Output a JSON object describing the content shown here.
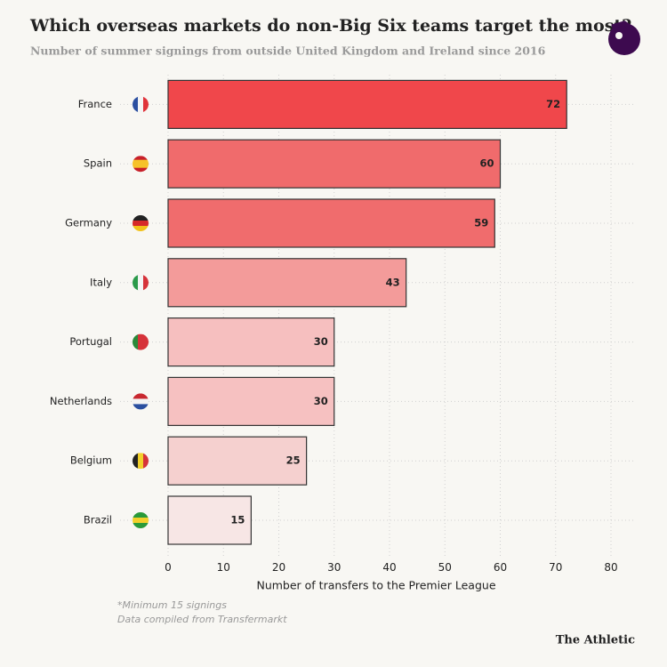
{
  "chart_data": {
    "type": "bar",
    "orientation": "horizontal",
    "title": "Which overseas markets do non-Big Six teams target the most?",
    "subtitle": "Number of summer signings from outside United Kingdom and Ireland since 2016",
    "categories": [
      "France",
      "Spain",
      "Germany",
      "Italy",
      "Portugal",
      "Netherlands",
      "Belgium",
      "Brazil"
    ],
    "values": [
      72,
      60,
      59,
      43,
      30,
      30,
      25,
      15
    ],
    "colors": [
      "#f0474b",
      "#f06b6c",
      "#f06c6d",
      "#f39b9a",
      "#f6bfbf",
      "#f6c1c1",
      "#f5d0cf",
      "#f7e6e5"
    ],
    "xlim": [
      0,
      80
    ],
    "xticks": [
      0,
      10,
      20,
      30,
      40,
      50,
      60,
      70,
      80
    ],
    "xlabel": "Number of transfers to the Premier League",
    "grid": true,
    "notes": [
      "*Minimum 15 signings",
      "Data compiled from Transfermarkt"
    ],
    "credit": "The Athletic"
  }
}
